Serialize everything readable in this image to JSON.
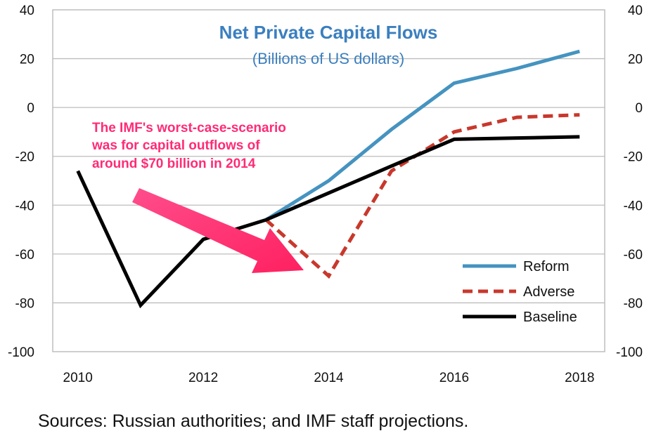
{
  "chart_data": {
    "type": "line",
    "title": "Net Private Capital Flows",
    "subtitle": "(Billions of US dollars)",
    "x": [
      2010,
      2011,
      2012,
      2013,
      2014,
      2015,
      2016,
      2017,
      2018
    ],
    "x_tick_labels": [
      "2010",
      "2012",
      "2014",
      "2016",
      "2018"
    ],
    "y_tick_labels": [
      "40",
      "20",
      "0",
      "-20",
      "-40",
      "-60",
      "-80",
      "-100"
    ],
    "ylim": [
      -100,
      40
    ],
    "xlim": [
      2009.6,
      2018.4
    ],
    "series": [
      {
        "name": "Reform",
        "color": "#4593c0",
        "dash": false,
        "x": [
          2013,
          2014,
          2015,
          2016,
          2017,
          2018
        ],
        "values": [
          -46,
          -30,
          -9,
          10,
          16,
          23
        ]
      },
      {
        "name": "Adverse",
        "color": "#c8382c",
        "dash": true,
        "x": [
          2013,
          2014,
          2015,
          2016,
          2017,
          2018
        ],
        "values": [
          -46,
          -69,
          -26,
          -10,
          -4,
          -3
        ]
      },
      {
        "name": "Baseline",
        "color": "#000000",
        "dash": false,
        "x": [
          2010,
          2011,
          2012,
          2013,
          2014,
          2015,
          2016,
          2017,
          2018
        ],
        "values": [
          -26,
          -81,
          -54,
          -46,
          -35,
          -24,
          -13,
          -12.5,
          -12
        ]
      }
    ],
    "legend_position": "bottom-right",
    "annotation": {
      "lines": [
        "The IMF's worst-case-scenario",
        "was for capital outflows of",
        "around $70 billion in 2014"
      ],
      "color": "#ff2b76"
    },
    "title_color": "#3b7fbf"
  },
  "footer": {
    "source": "Sources: Russian authorities; and IMF staff projections."
  }
}
